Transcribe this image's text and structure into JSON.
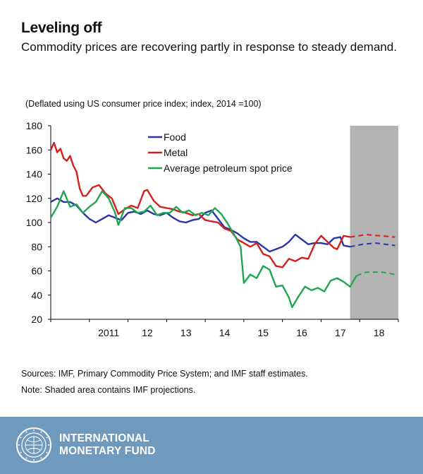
{
  "header": {
    "title": "Leveling off",
    "subtitle": "Commodity prices are recovering partly in response to steady demand."
  },
  "chart_note": "(Deflated using US consumer price index; index, 2014 =100)",
  "sources": "Sources: IMF, Primary Commodity Price System; and IMF staff estimates.",
  "shade_note": "Note: Shaded area contains IMF projections.",
  "footer": {
    "org_line1": "INTERNATIONAL",
    "org_line2": "MONETARY FUND",
    "seal_icon": "imf-seal-icon"
  },
  "colors": {
    "food": "#2b34a8",
    "metal": "#d51f1f",
    "petroleum": "#1fa650",
    "projection_shade": "#b3b3b3",
    "footer_bg": "#6f99bd"
  },
  "chart_data": {
    "type": "line",
    "title": "",
    "xlabel": "",
    "ylabel": "",
    "ylim": [
      20,
      180
    ],
    "yticks": [
      20,
      40,
      60,
      80,
      100,
      120,
      140,
      160,
      180
    ],
    "x_range": [
      "2010-01",
      "2018-12"
    ],
    "x_ticks": [
      {
        "label": "2011",
        "x": "2011-07"
      },
      {
        "label": "12",
        "x": "2012-07"
      },
      {
        "label": "13",
        "x": "2013-07"
      },
      {
        "label": "14",
        "x": "2014-07"
      },
      {
        "label": "15",
        "x": "2015-07"
      },
      {
        "label": "16",
        "x": "2016-07"
      },
      {
        "label": "17",
        "x": "2017-07"
      },
      {
        "label": "18",
        "x": "2018-07"
      }
    ],
    "projection_start": "2017-10",
    "legend_position": "top-left",
    "grid": false,
    "series": [
      {
        "name": "Food",
        "color": "#2b34a8",
        "actual": [
          [
            "2010-01",
            117
          ],
          [
            "2010-03",
            120
          ],
          [
            "2010-05",
            117
          ],
          [
            "2010-07",
            117
          ],
          [
            "2010-09",
            114
          ],
          [
            "2010-11",
            108
          ],
          [
            "2011-01",
            103
          ],
          [
            "2011-03",
            100
          ],
          [
            "2011-05",
            103
          ],
          [
            "2011-07",
            106
          ],
          [
            "2011-09",
            104
          ],
          [
            "2011-11",
            102
          ],
          [
            "2012-01",
            108
          ],
          [
            "2012-03",
            109
          ],
          [
            "2012-05",
            107
          ],
          [
            "2012-07",
            110
          ],
          [
            "2012-09",
            107
          ],
          [
            "2012-11",
            106
          ],
          [
            "2013-01",
            108
          ],
          [
            "2013-03",
            104
          ],
          [
            "2013-05",
            101
          ],
          [
            "2013-07",
            100
          ],
          [
            "2013-09",
            102
          ],
          [
            "2013-11",
            103
          ],
          [
            "2014-01",
            108
          ],
          [
            "2014-03",
            110
          ],
          [
            "2014-05",
            103
          ],
          [
            "2014-07",
            96
          ],
          [
            "2014-09",
            94
          ],
          [
            "2014-11",
            91
          ],
          [
            "2015-01",
            87
          ],
          [
            "2015-03",
            84
          ],
          [
            "2015-05",
            84
          ],
          [
            "2015-07",
            80
          ],
          [
            "2015-09",
            76
          ],
          [
            "2015-11",
            78
          ],
          [
            "2016-01",
            80
          ],
          [
            "2016-03",
            84
          ],
          [
            "2016-05",
            90
          ],
          [
            "2016-07",
            86
          ],
          [
            "2016-09",
            82
          ],
          [
            "2016-11",
            83
          ],
          [
            "2017-01",
            83
          ],
          [
            "2017-03",
            82
          ],
          [
            "2017-05",
            87
          ],
          [
            "2017-07",
            88
          ],
          [
            "2017-08",
            81
          ],
          [
            "2017-10",
            80
          ]
        ],
        "projection": [
          [
            "2017-10",
            80
          ],
          [
            "2018-02",
            82
          ],
          [
            "2018-06",
            83
          ],
          [
            "2018-12",
            81
          ]
        ]
      },
      {
        "name": "Metal",
        "color": "#d51f1f",
        "actual": [
          [
            "2010-01",
            160
          ],
          [
            "2010-02",
            166
          ],
          [
            "2010-03",
            158
          ],
          [
            "2010-04",
            161
          ],
          [
            "2010-05",
            153
          ],
          [
            "2010-06",
            151
          ],
          [
            "2010-07",
            155
          ],
          [
            "2010-08",
            147
          ],
          [
            "2010-09",
            142
          ],
          [
            "2010-10",
            128
          ],
          [
            "2010-11",
            122
          ],
          [
            "2010-12",
            122
          ],
          [
            "2011-02",
            129
          ],
          [
            "2011-04",
            131
          ],
          [
            "2011-06",
            124
          ],
          [
            "2011-08",
            120
          ],
          [
            "2011-10",
            107
          ],
          [
            "2011-12",
            111
          ],
          [
            "2012-02",
            114
          ],
          [
            "2012-04",
            112
          ],
          [
            "2012-06",
            126
          ],
          [
            "2012-07",
            127
          ],
          [
            "2012-09",
            118
          ],
          [
            "2012-11",
            113
          ],
          [
            "2013-01",
            112
          ],
          [
            "2013-03",
            111
          ],
          [
            "2013-05",
            109
          ],
          [
            "2013-07",
            108
          ],
          [
            "2013-09",
            106
          ],
          [
            "2013-11",
            107
          ],
          [
            "2014-01",
            102
          ],
          [
            "2014-03",
            101
          ],
          [
            "2014-05",
            100
          ],
          [
            "2014-07",
            95
          ],
          [
            "2014-09",
            93
          ],
          [
            "2014-11",
            86
          ],
          [
            "2015-01",
            83
          ],
          [
            "2015-03",
            80
          ],
          [
            "2015-05",
            83
          ],
          [
            "2015-07",
            74
          ],
          [
            "2015-09",
            72
          ],
          [
            "2015-11",
            64
          ],
          [
            "2016-01",
            63
          ],
          [
            "2016-03",
            70
          ],
          [
            "2016-05",
            68
          ],
          [
            "2016-07",
            71
          ],
          [
            "2016-09",
            70
          ],
          [
            "2016-11",
            82
          ],
          [
            "2017-01",
            89
          ],
          [
            "2017-03",
            84
          ],
          [
            "2017-05",
            79
          ],
          [
            "2017-06",
            78
          ],
          [
            "2017-08",
            89
          ],
          [
            "2017-10",
            88
          ]
        ],
        "projection": [
          [
            "2017-10",
            88
          ],
          [
            "2018-03",
            90
          ],
          [
            "2018-12",
            88
          ]
        ]
      },
      {
        "name": "Average petroleum spot price",
        "color": "#1fa650",
        "actual": [
          [
            "2010-01",
            104
          ],
          [
            "2010-03",
            113
          ],
          [
            "2010-05",
            126
          ],
          [
            "2010-07",
            113
          ],
          [
            "2010-09",
            115
          ],
          [
            "2010-11",
            108
          ],
          [
            "2011-01",
            113
          ],
          [
            "2011-03",
            117
          ],
          [
            "2011-05",
            126
          ],
          [
            "2011-07",
            120
          ],
          [
            "2011-09",
            108
          ],
          [
            "2011-10",
            98
          ],
          [
            "2011-12",
            112
          ],
          [
            "2012-02",
            112
          ],
          [
            "2012-04",
            108
          ],
          [
            "2012-06",
            109
          ],
          [
            "2012-08",
            114
          ],
          [
            "2012-10",
            106
          ],
          [
            "2012-12",
            108
          ],
          [
            "2013-02",
            108
          ],
          [
            "2013-04",
            113
          ],
          [
            "2013-06",
            108
          ],
          [
            "2013-08",
            110
          ],
          [
            "2013-10",
            106
          ],
          [
            "2013-12",
            108
          ],
          [
            "2014-02",
            106
          ],
          [
            "2014-04",
            112
          ],
          [
            "2014-06",
            107
          ],
          [
            "2014-08",
            99
          ],
          [
            "2014-10",
            90
          ],
          [
            "2014-12",
            80
          ],
          [
            "2015-01",
            50
          ],
          [
            "2015-03",
            57
          ],
          [
            "2015-05",
            54
          ],
          [
            "2015-07",
            64
          ],
          [
            "2015-09",
            61
          ],
          [
            "2015-11",
            47
          ],
          [
            "2016-01",
            48
          ],
          [
            "2016-03",
            38
          ],
          [
            "2016-04",
            30
          ],
          [
            "2016-06",
            39
          ],
          [
            "2016-08",
            47
          ],
          [
            "2016-10",
            44
          ],
          [
            "2016-12",
            46
          ],
          [
            "2017-02",
            43
          ],
          [
            "2017-04",
            52
          ],
          [
            "2017-06",
            54
          ],
          [
            "2017-08",
            51
          ],
          [
            "2017-10",
            47
          ],
          [
            "2017-12",
            56
          ]
        ],
        "projection": [
          [
            "2017-12",
            56
          ],
          [
            "2018-03",
            59
          ],
          [
            "2018-08",
            59
          ],
          [
            "2018-12",
            57
          ]
        ]
      }
    ]
  }
}
